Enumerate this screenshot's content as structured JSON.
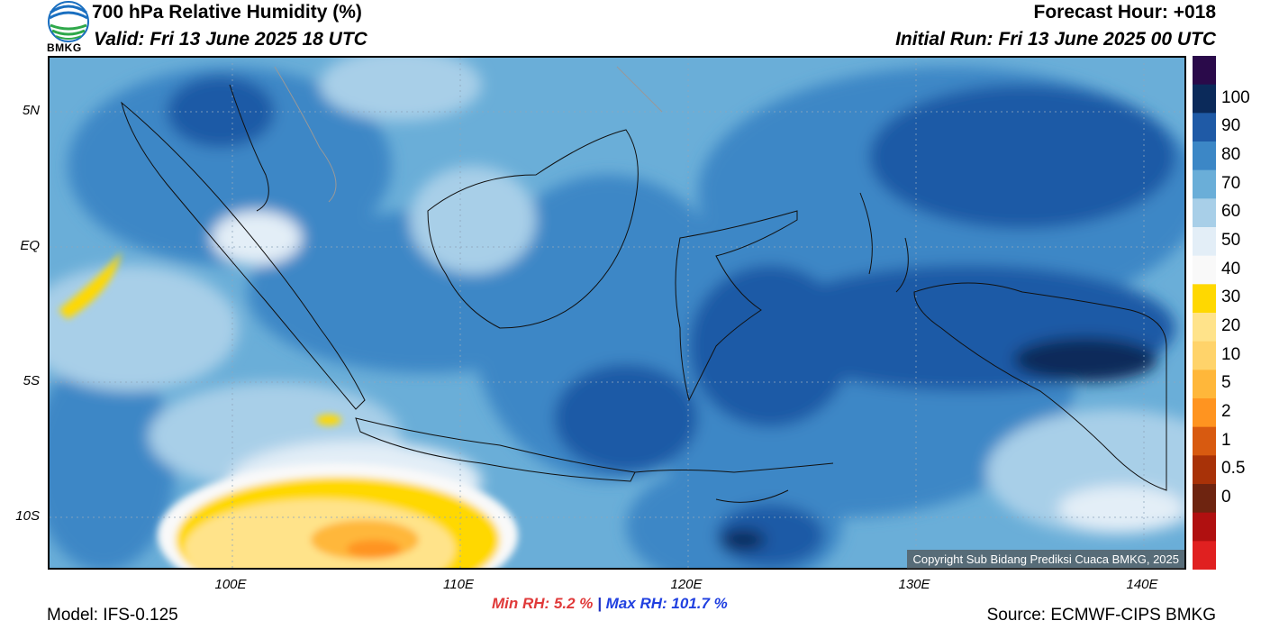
{
  "header": {
    "title": "700 hPa Relative Humidity (%)",
    "valid": "Valid: Fri 13 June 2025 18 UTC",
    "forecast_hour": "Forecast Hour: +018",
    "initial_run": "Initial Run: Fri 13 June 2025 00 UTC"
  },
  "logo_text": "BMKG",
  "map": {
    "lat_labels": [
      "5N",
      "EQ",
      "5S",
      "10S"
    ],
    "lon_labels": [
      "100E",
      "110E",
      "120E",
      "130E",
      "140E"
    ],
    "copyright": "Copyright Sub Bidang Prediksi Cuaca BMKG, 2025"
  },
  "stats": {
    "min_label": "Min RH:",
    "min_value": "5.2 %",
    "separator": "|",
    "max_label": "Max RH: 101.7 %"
  },
  "footer": {
    "model": "Model: IFS-0.125",
    "source": "Source: ECMWF-CIPS BMKG"
  },
  "colorbar": {
    "labels": [
      "100",
      "90",
      "80",
      "70",
      "60",
      "50",
      "40",
      "30",
      "20",
      "10",
      "5",
      "2",
      "1",
      "0.5",
      "0"
    ],
    "colors": [
      "#2a0a4a",
      "#0b2a5a",
      "#1f5aa6",
      "#3c87c6",
      "#6aaed8",
      "#a8cfe8",
      "#e3eef7",
      "#f9f9f9",
      "#ffd800",
      "#ffe38a",
      "#ffd36a",
      "#ffb73a",
      "#ff9420",
      "#d85a10",
      "#a83208",
      "#6e2410",
      "#b01010",
      "#e02020"
    ]
  }
}
